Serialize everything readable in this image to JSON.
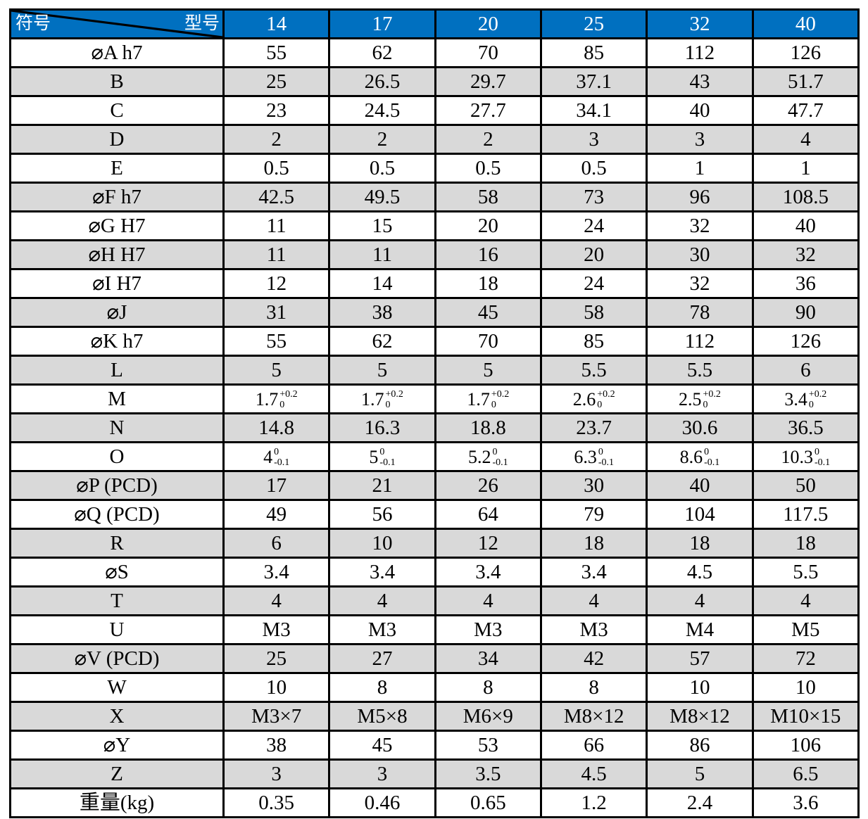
{
  "header": {
    "corner_left": "符号",
    "corner_right": "型号",
    "models": [
      "14",
      "17",
      "20",
      "25",
      "32",
      "40"
    ]
  },
  "rows": [
    {
      "label": "⌀A h7",
      "values": [
        "55",
        "62",
        "70",
        "85",
        "112",
        "126"
      ]
    },
    {
      "label": "B",
      "values": [
        "25",
        "26.5",
        "29.7",
        "37.1",
        "43",
        "51.7"
      ]
    },
    {
      "label": "C",
      "values": [
        "23",
        "24.5",
        "27.7",
        "34.1",
        "40",
        "47.7"
      ]
    },
    {
      "label": "D",
      "values": [
        "2",
        "2",
        "2",
        "3",
        "3",
        "4"
      ]
    },
    {
      "label": "E",
      "values": [
        "0.5",
        "0.5",
        "0.5",
        "0.5",
        "1",
        "1"
      ]
    },
    {
      "label": "⌀F h7",
      "values": [
        "42.5",
        "49.5",
        "58",
        "73",
        "96",
        "108.5"
      ]
    },
    {
      "label": "⌀G H7",
      "values": [
        "11",
        "15",
        "20",
        "24",
        "32",
        "40"
      ]
    },
    {
      "label": "⌀H H7",
      "values": [
        "11",
        "11",
        "16",
        "20",
        "30",
        "32"
      ]
    },
    {
      "label": "⌀I H7",
      "values": [
        "12",
        "14",
        "18",
        "24",
        "32",
        "36"
      ]
    },
    {
      "label": "⌀J",
      "values": [
        "31",
        "38",
        "45",
        "58",
        "78",
        "90"
      ]
    },
    {
      "label": "⌀K h7",
      "values": [
        "55",
        "62",
        "70",
        "85",
        "112",
        "126"
      ]
    },
    {
      "label": "L",
      "values": [
        "5",
        "5",
        "5",
        "5.5",
        "5.5",
        "6"
      ]
    },
    {
      "label": "M",
      "values": [
        {
          "base": "1.7",
          "upper": "+0.2",
          "lower": "0"
        },
        {
          "base": "1.7",
          "upper": "+0.2",
          "lower": "0"
        },
        {
          "base": "1.7",
          "upper": "+0.2",
          "lower": "0"
        },
        {
          "base": "2.6",
          "upper": "+0.2",
          "lower": "0"
        },
        {
          "base": "2.5",
          "upper": "+0.2",
          "lower": "0"
        },
        {
          "base": "3.4",
          "upper": "+0.2",
          "lower": "0"
        }
      ]
    },
    {
      "label": "N",
      "values": [
        "14.8",
        "16.3",
        "18.8",
        "23.7",
        "30.6",
        "36.5"
      ]
    },
    {
      "label": "O",
      "values": [
        {
          "base": "4",
          "upper": "0",
          "lower": "-0.1"
        },
        {
          "base": "5",
          "upper": "0",
          "lower": "-0.1"
        },
        {
          "base": "5.2",
          "upper": "0",
          "lower": "-0.1"
        },
        {
          "base": "6.3",
          "upper": "0",
          "lower": "-0.1"
        },
        {
          "base": "8.6",
          "upper": "0",
          "lower": "-0.1"
        },
        {
          "base": "10.3",
          "upper": "0",
          "lower": "-0.1"
        }
      ]
    },
    {
      "label": "⌀P (PCD)",
      "values": [
        "17",
        "21",
        "26",
        "30",
        "40",
        "50"
      ]
    },
    {
      "label": "⌀Q (PCD)",
      "values": [
        "49",
        "56",
        "64",
        "79",
        "104",
        "117.5"
      ]
    },
    {
      "label": "R",
      "values": [
        "6",
        "10",
        "12",
        "18",
        "18",
        "18"
      ]
    },
    {
      "label": "⌀S",
      "values": [
        "3.4",
        "3.4",
        "3.4",
        "3.4",
        "4.5",
        "5.5"
      ]
    },
    {
      "label": "T",
      "values": [
        "4",
        "4",
        "4",
        "4",
        "4",
        "4"
      ]
    },
    {
      "label": "U",
      "values": [
        "M3",
        "M3",
        "M3",
        "M3",
        "M4",
        "M5"
      ]
    },
    {
      "label": "⌀V (PCD)",
      "values": [
        "25",
        "27",
        "34",
        "42",
        "57",
        "72"
      ]
    },
    {
      "label": "W",
      "values": [
        "10",
        "8",
        "8",
        "8",
        "10",
        "10"
      ]
    },
    {
      "label": "X",
      "values": [
        "M3×7",
        "M5×8",
        "M6×9",
        "M8×12",
        "M8×12",
        "M10×15"
      ]
    },
    {
      "label": "⌀Y",
      "values": [
        "38",
        "45",
        "53",
        "66",
        "86",
        "106"
      ]
    },
    {
      "label": "Z",
      "values": [
        "3",
        "3",
        "3.5",
        "4.5",
        "5",
        "6.5"
      ]
    },
    {
      "label": "重量(kg)",
      "values": [
        "0.35",
        "0.46",
        "0.65",
        "1.2",
        "2.4",
        "3.6"
      ]
    }
  ],
  "colors": {
    "header_bg": "#0070c0",
    "stripe": "#d9d9d9"
  }
}
